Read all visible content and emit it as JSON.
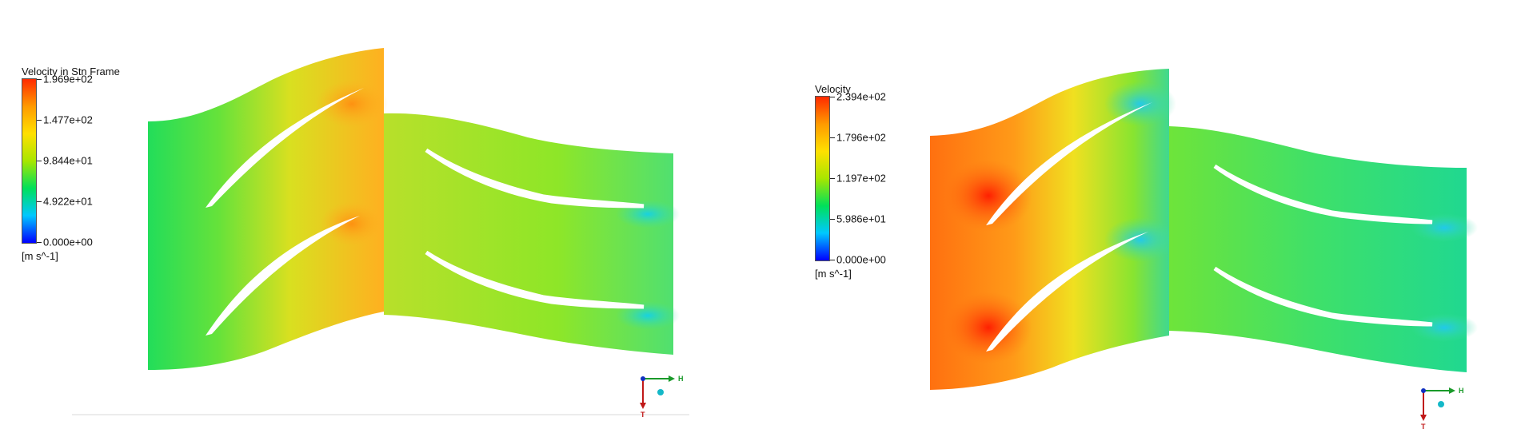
{
  "left_panel": {
    "legend": {
      "title": "Velocity in Stn Frame",
      "ticks": [
        "1.969e+02",
        "1.477e+02",
        "9.844e+01",
        "4.922e+01",
        "0.000e+00"
      ],
      "unit": "[m s^-1]"
    },
    "axes": {
      "x_label": "H",
      "y_label": "T"
    }
  },
  "right_panel": {
    "legend": {
      "title": "Velocity",
      "ticks": [
        "2.394e+02",
        "1.796e+02",
        "1.197e+02",
        "5.986e+01",
        "0.000e+00"
      ],
      "unit": "[m s^-1]"
    },
    "axes": {
      "x_label": "H",
      "y_label": "T"
    }
  },
  "colors": {
    "scale": [
      "#0000ff",
      "#00c8ff",
      "#00e05a",
      "#a8e600",
      "#ffe000",
      "#ff9a00",
      "#ff2a00"
    ]
  }
}
